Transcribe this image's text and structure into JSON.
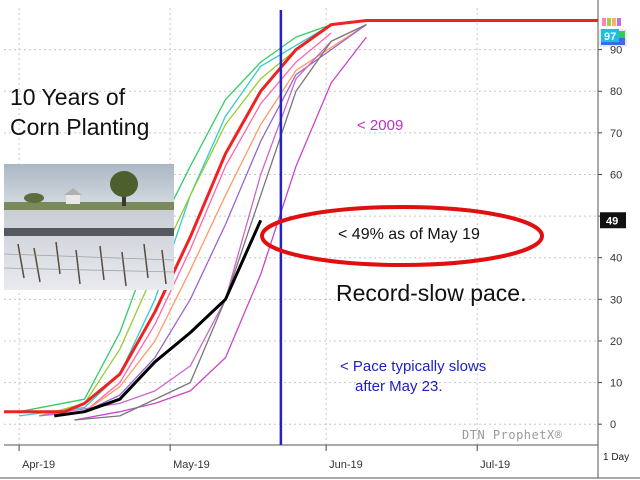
{
  "chart_data": {
    "type": "line",
    "title": "10 Years of Corn Planting",
    "title_lines": [
      "10 Years of",
      "Corn Planting"
    ],
    "xlabel": "",
    "ylabel": "",
    "x_ticks": [
      "Apr-19",
      "May-19",
      "Jun-19",
      "Jul-19"
    ],
    "y_ticks": [
      0,
      10,
      20,
      30,
      40,
      50,
      60,
      70,
      80,
      90
    ],
    "ylim": [
      -5,
      100
    ],
    "xlim": [
      "2019-03-29",
      "2019-07-25"
    ],
    "grid": true,
    "interval": "1 Day",
    "source_watermark": "DTN ProphetX®",
    "badges": {
      "upper_values": [
        "97"
      ],
      "current_value": "49"
    },
    "series": [
      {
        "points": [
          [
            "2019-04-01",
            2
          ],
          [
            "2019-04-14",
            4
          ],
          [
            "2019-04-21",
            12
          ],
          [
            "2019-04-28",
            30
          ],
          [
            "2019-05-05",
            55
          ],
          [
            "2019-05-12",
            74
          ],
          [
            "2019-05-19",
            86
          ],
          [
            "2019-06-02",
            96
          ]
        ],
        "color": "#33cccc"
      },
      {
        "points": [
          [
            "2019-04-01",
            3
          ],
          [
            "2019-04-14",
            6
          ],
          [
            "2019-04-21",
            22
          ],
          [
            "2019-04-28",
            45
          ],
          [
            "2019-05-05",
            62
          ],
          [
            "2019-05-12",
            78
          ],
          [
            "2019-05-19",
            87
          ],
          [
            "2019-05-26",
            93
          ],
          [
            "2019-06-02",
            96
          ]
        ],
        "color": "#33cc66"
      },
      {
        "points": [
          [
            "2019-04-05",
            2
          ],
          [
            "2019-04-14",
            5
          ],
          [
            "2019-04-21",
            18
          ],
          [
            "2019-04-28",
            37
          ],
          [
            "2019-05-05",
            55
          ],
          [
            "2019-05-12",
            72
          ],
          [
            "2019-05-19",
            83
          ],
          [
            "2019-05-26",
            90
          ],
          [
            "2019-06-02",
            96
          ]
        ],
        "color": "#99cc33"
      },
      {
        "points": [
          [
            "2019-04-05",
            2
          ],
          [
            "2019-04-14",
            3
          ],
          [
            "2019-04-21",
            10
          ],
          [
            "2019-04-28",
            24
          ],
          [
            "2019-05-05",
            42
          ],
          [
            "2019-05-12",
            62
          ],
          [
            "2019-05-19",
            77
          ],
          [
            "2019-05-26",
            87
          ],
          [
            "2019-06-02",
            94
          ]
        ],
        "color": "#ff66aa"
      },
      {
        "points": [
          [
            "2019-04-08",
            2
          ],
          [
            "2019-04-14",
            3
          ],
          [
            "2019-04-21",
            9
          ],
          [
            "2019-04-28",
            20
          ],
          [
            "2019-05-05",
            37
          ],
          [
            "2019-05-12",
            55
          ],
          [
            "2019-05-19",
            72
          ],
          [
            "2019-05-26",
            85
          ],
          [
            "2019-06-09",
            96
          ]
        ],
        "color": "#ff9966"
      },
      {
        "points": [
          [
            "2019-04-08",
            2
          ],
          [
            "2019-04-14",
            3
          ],
          [
            "2019-04-21",
            7
          ],
          [
            "2019-04-28",
            16
          ],
          [
            "2019-05-05",
            30
          ],
          [
            "2019-05-12",
            48
          ],
          [
            "2019-05-19",
            68
          ],
          [
            "2019-05-26",
            84
          ],
          [
            "2019-06-09",
            96
          ]
        ],
        "color": "#9966cc"
      },
      {
        "points": [
          [
            "2019-04-05",
            2
          ],
          [
            "2019-04-21",
            5
          ],
          [
            "2019-04-28",
            8
          ],
          [
            "2019-05-05",
            14
          ],
          [
            "2019-05-12",
            30
          ],
          [
            "2019-05-19",
            60
          ],
          [
            "2019-05-26",
            83
          ],
          [
            "2019-06-02",
            92
          ],
          [
            "2019-06-09",
            96
          ]
        ],
        "color": "#cc66cc"
      },
      {
        "points": [
          [
            "2019-04-12",
            1
          ],
          [
            "2019-04-21",
            3
          ],
          [
            "2019-04-28",
            5
          ],
          [
            "2019-05-05",
            8
          ],
          [
            "2019-05-12",
            16
          ],
          [
            "2019-05-19",
            36
          ],
          [
            "2019-05-26",
            62
          ],
          [
            "2019-06-02",
            82
          ],
          [
            "2019-06-09",
            93
          ]
        ],
        "color": "#cc44cc",
        "label": "< 2009"
      },
      {
        "points": [
          [
            "2019-04-12",
            1
          ],
          [
            "2019-04-21",
            2
          ],
          [
            "2019-05-05",
            10
          ],
          [
            "2019-05-12",
            30
          ],
          [
            "2019-05-19",
            55
          ],
          [
            "2019-05-26",
            80
          ],
          [
            "2019-06-02",
            92
          ],
          [
            "2019-06-09",
            96
          ]
        ],
        "color": "#777777"
      },
      {
        "points": [
          [
            "2019-03-29",
            3
          ],
          [
            "2019-04-05",
            3
          ],
          [
            "2019-04-10",
            3
          ],
          [
            "2019-04-14",
            5
          ],
          [
            "2019-04-21",
            12
          ],
          [
            "2019-04-28",
            27
          ],
          [
            "2019-05-05",
            45
          ],
          [
            "2019-05-12",
            65
          ],
          [
            "2019-05-19",
            80
          ],
          [
            "2019-05-26",
            90
          ],
          [
            "2019-06-02",
            96
          ],
          [
            "2019-06-09",
            97
          ],
          [
            "2019-07-25",
            97
          ]
        ],
        "color": "#ee2222",
        "width": 3
      },
      {
        "points": [
          [
            "2019-04-08",
            2
          ],
          [
            "2019-04-14",
            3
          ],
          [
            "2019-04-21",
            6
          ],
          [
            "2019-04-28",
            15
          ],
          [
            "2019-05-05",
            22
          ],
          [
            "2019-05-12",
            30
          ],
          [
            "2019-05-19",
            49
          ]
        ],
        "color": "#000000",
        "width": 3
      }
    ],
    "annotations": {
      "current_label": "< 49% as of May 19",
      "headline": "Record-slow pace.",
      "pace_lines": [
        "< Pace typically slows",
        "after May 23."
      ]
    },
    "vertical_marker_date": "2019-05-23",
    "vertical_marker_color": "#2222cc",
    "highlight_color": "#e01010"
  }
}
